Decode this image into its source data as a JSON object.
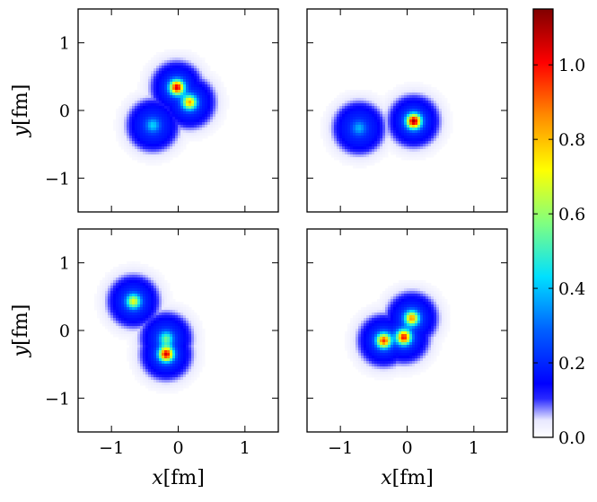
{
  "chart_data": {
    "type": "heatmap",
    "panels": [
      {
        "id": "top-left",
        "xlim": [
          -1.5,
          1.5
        ],
        "ylim": [
          -1.5,
          1.5
        ],
        "show_xticklabels": false,
        "show_yticklabels": true,
        "xlabel": "",
        "ylabel": "y[fm]",
        "peaks": [
          {
            "x": -0.38,
            "y": -0.22,
            "value": 0.42
          },
          {
            "x": -0.02,
            "y": 0.34,
            "value": 1.05
          },
          {
            "x": 0.17,
            "y": 0.12,
            "value": 0.82
          }
        ]
      },
      {
        "id": "top-right",
        "xlim": [
          -1.5,
          1.5
        ],
        "ylim": [
          -1.5,
          1.5
        ],
        "show_xticklabels": false,
        "show_yticklabels": false,
        "xlabel": "",
        "ylabel": "",
        "peaks": [
          {
            "x": -0.72,
            "y": -0.26,
            "value": 0.38
          },
          {
            "x": 0.1,
            "y": -0.16,
            "value": 1.12
          }
        ]
      },
      {
        "id": "bottom-left",
        "xlim": [
          -1.5,
          1.5
        ],
        "ylim": [
          -1.5,
          1.5
        ],
        "show_xticklabels": true,
        "show_yticklabels": true,
        "xlabel": "x[fm]",
        "ylabel": "y[fm]",
        "peaks": [
          {
            "x": -0.67,
            "y": 0.43,
            "value": 0.7
          },
          {
            "x": -0.18,
            "y": -0.12,
            "value": 0.55
          },
          {
            "x": -0.18,
            "y": -0.35,
            "value": 1.05
          }
        ]
      },
      {
        "id": "bottom-right",
        "xlim": [
          -1.5,
          1.5
        ],
        "ylim": [
          -1.5,
          1.5
        ],
        "show_xticklabels": true,
        "show_yticklabels": false,
        "xlabel": "x[fm]",
        "ylabel": "",
        "peaks": [
          {
            "x": -0.35,
            "y": -0.15,
            "value": 0.95
          },
          {
            "x": -0.05,
            "y": -0.1,
            "value": 1.0
          },
          {
            "x": 0.07,
            "y": 0.18,
            "value": 0.85
          }
        ]
      }
    ],
    "ticks": [
      -1,
      0,
      1
    ],
    "tick_labels": [
      "−1",
      "0",
      "1"
    ],
    "colorbar": {
      "colormap": "jet",
      "range": [
        0.0,
        1.15
      ],
      "ticks": [
        0.0,
        0.2,
        0.4,
        0.6,
        0.8,
        1.0
      ],
      "tick_labels": [
        "0.0",
        "0.2",
        "0.4",
        "0.6",
        "0.8",
        "1.0"
      ]
    }
  }
}
